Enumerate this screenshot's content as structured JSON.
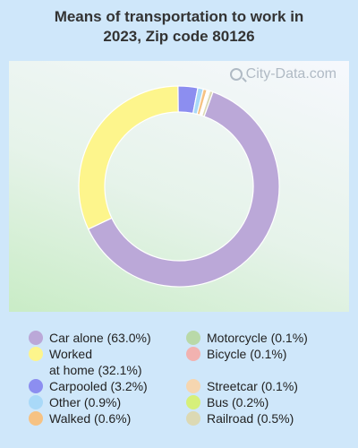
{
  "title_line1": "Means of transportation to work in",
  "title_line2": "2023, Zip code 80126",
  "watermark": "City-Data.com",
  "chart_data": {
    "type": "pie",
    "donut": true,
    "title": "Means of transportation to work in 2023, Zip code 80126",
    "slices": [
      {
        "label": "Car alone (63.0%)",
        "name": "Car alone",
        "value": 63.0,
        "color": "#bba8d8"
      },
      {
        "label": "Worked\nat home (32.1%)",
        "name": "Worked at home",
        "value": 32.1,
        "color": "#fdf58c"
      },
      {
        "label": "Carpooled (3.2%)",
        "name": "Carpooled",
        "value": 3.2,
        "color": "#8c8ef0"
      },
      {
        "label": "Other (0.9%)",
        "name": "Other",
        "value": 0.9,
        "color": "#a9d9f8"
      },
      {
        "label": "Walked (0.6%)",
        "name": "Walked",
        "value": 0.6,
        "color": "#f6c283"
      },
      {
        "label": "Motorcycle (0.1%)",
        "name": "Motorcycle",
        "value": 0.1,
        "color": "#b9d9a8"
      },
      {
        "label": "Bicycle (0.1%)",
        "name": "Bicycle",
        "value": 0.1,
        "color": "#f2b2b0"
      },
      {
        "label": "Streetcar (0.1%)",
        "name": "Streetcar",
        "value": 0.1,
        "color": "#f6d6b0"
      },
      {
        "label": "Bus (0.2%)",
        "name": "Bus",
        "value": 0.2,
        "color": "#d6f07a"
      },
      {
        "label": "Railroad (0.5%)",
        "name": "Railroad",
        "value": 0.5,
        "color": "#dcd9b4"
      }
    ],
    "legend_position": "bottom"
  }
}
